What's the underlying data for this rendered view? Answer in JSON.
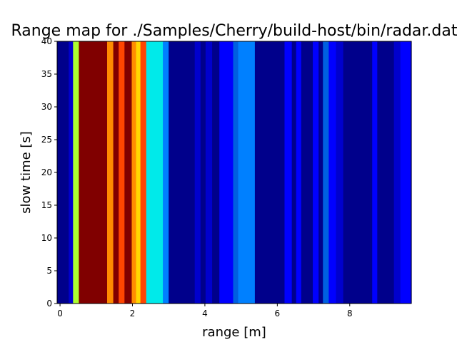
{
  "chart_data": {
    "type": "heatmap",
    "title": "Range map for ./Samples/Cherry/build-host/bin/radar.dat",
    "xlabel": "range [m]",
    "ylabel": "slow time [s]",
    "xlim": [
      -0.08,
      9.7
    ],
    "ylim": [
      0,
      40
    ],
    "xticks": [
      0,
      2,
      4,
      6,
      8
    ],
    "yticks": [
      0,
      5,
      10,
      15,
      20,
      25,
      30,
      35,
      40
    ],
    "colormap": "jet",
    "grid": false,
    "columns": [
      {
        "x0": -0.08,
        "x1": 0.24,
        "color": "#00008b"
      },
      {
        "x0": 0.24,
        "x1": 0.36,
        "color": "#0000cd"
      },
      {
        "x0": 0.36,
        "x1": 0.52,
        "color": "#adff2f"
      },
      {
        "x0": 0.52,
        "x1": 1.3,
        "color": "#800000"
      },
      {
        "x0": 1.3,
        "x1": 1.47,
        "color": "#ff8c00"
      },
      {
        "x0": 1.47,
        "x1": 1.62,
        "color": "#800000"
      },
      {
        "x0": 1.62,
        "x1": 1.78,
        "color": "#ff4500"
      },
      {
        "x0": 1.78,
        "x1": 1.98,
        "color": "#800000"
      },
      {
        "x0": 1.98,
        "x1": 2.1,
        "color": "#ff8c00"
      },
      {
        "x0": 2.1,
        "x1": 2.22,
        "color": "#ffd700"
      },
      {
        "x0": 2.22,
        "x1": 2.38,
        "color": "#ff4500"
      },
      {
        "x0": 2.38,
        "x1": 2.84,
        "color": "#00eaea"
      },
      {
        "x0": 2.84,
        "x1": 3.0,
        "color": "#0080ff"
      },
      {
        "x0": 3.0,
        "x1": 3.72,
        "color": "#00008b"
      },
      {
        "x0": 3.72,
        "x1": 3.88,
        "color": "#0000cd"
      },
      {
        "x0": 3.88,
        "x1": 4.02,
        "color": "#00008b"
      },
      {
        "x0": 4.02,
        "x1": 4.2,
        "color": "#0000cd"
      },
      {
        "x0": 4.2,
        "x1": 4.4,
        "color": "#00008b"
      },
      {
        "x0": 4.4,
        "x1": 4.78,
        "color": "#0000ff"
      },
      {
        "x0": 4.78,
        "x1": 4.92,
        "color": "#0060e0"
      },
      {
        "x0": 4.92,
        "x1": 5.38,
        "color": "#0080ff"
      },
      {
        "x0": 5.38,
        "x1": 6.2,
        "color": "#00008b"
      },
      {
        "x0": 6.2,
        "x1": 6.4,
        "color": "#0000ff"
      },
      {
        "x0": 6.4,
        "x1": 6.52,
        "color": "#00008b"
      },
      {
        "x0": 6.52,
        "x1": 6.66,
        "color": "#0000ff"
      },
      {
        "x0": 6.66,
        "x1": 6.98,
        "color": "#00008b"
      },
      {
        "x0": 6.98,
        "x1": 7.14,
        "color": "#0000ff"
      },
      {
        "x0": 7.14,
        "x1": 7.26,
        "color": "#00008b"
      },
      {
        "x0": 7.26,
        "x1": 7.42,
        "color": "#0060e0"
      },
      {
        "x0": 7.42,
        "x1": 7.62,
        "color": "#0000ff"
      },
      {
        "x0": 7.62,
        "x1": 7.82,
        "color": "#0000cd"
      },
      {
        "x0": 7.82,
        "x1": 8.62,
        "color": "#00008b"
      },
      {
        "x0": 8.62,
        "x1": 8.76,
        "color": "#0000ff"
      },
      {
        "x0": 8.76,
        "x1": 9.22,
        "color": "#00008b"
      },
      {
        "x0": 9.22,
        "x1": 9.4,
        "color": "#0000cd"
      },
      {
        "x0": 9.4,
        "x1": 9.7,
        "color": "#0000ff"
      }
    ]
  }
}
